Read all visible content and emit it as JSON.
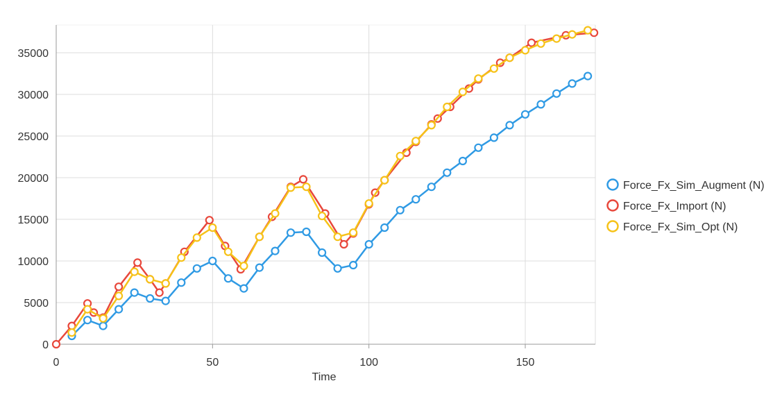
{
  "chart_data": {
    "type": "line",
    "title": "",
    "xlabel": "Time",
    "ylabel": "",
    "xlim": [
      0,
      172
    ],
    "ylim": [
      0,
      38000
    ],
    "xticks": [
      0,
      50,
      100,
      150
    ],
    "yticks": [
      0,
      5000,
      10000,
      15000,
      20000,
      25000,
      30000,
      35000
    ],
    "grid": true,
    "legend_position": "right",
    "series": [
      {
        "name": "Force_Fx_Sim_Augment (N)",
        "color": "#2f9ae4",
        "points": [
          [
            5,
            1000
          ],
          [
            10,
            2900
          ],
          [
            15,
            2200
          ],
          [
            20,
            4200
          ],
          [
            25,
            6200
          ],
          [
            30,
            5500
          ],
          [
            35,
            5200
          ],
          [
            40,
            7400
          ],
          [
            45,
            9100
          ],
          [
            50,
            10000
          ],
          [
            55,
            7900
          ],
          [
            60,
            6700
          ],
          [
            65,
            9200
          ],
          [
            70,
            11200
          ],
          [
            75,
            13400
          ],
          [
            80,
            13500
          ],
          [
            85,
            11000
          ],
          [
            90,
            9100
          ],
          [
            95,
            9500
          ],
          [
            100,
            12000
          ],
          [
            105,
            14000
          ],
          [
            110,
            16100
          ],
          [
            115,
            17400
          ],
          [
            120,
            18900
          ],
          [
            125,
            20600
          ],
          [
            130,
            22000
          ],
          [
            135,
            23600
          ],
          [
            140,
            24800
          ],
          [
            145,
            26300
          ],
          [
            150,
            27600
          ],
          [
            155,
            28800
          ],
          [
            160,
            30100
          ],
          [
            165,
            31300
          ],
          [
            170,
            32200
          ]
        ]
      },
      {
        "name": "Force_Fx_Import (N)",
        "color": "#e8473b",
        "points": [
          [
            0,
            0
          ],
          [
            5,
            2200
          ],
          [
            10,
            4900
          ],
          [
            12,
            3800
          ],
          [
            15,
            3200
          ],
          [
            20,
            6900
          ],
          [
            26,
            9800
          ],
          [
            30,
            7800
          ],
          [
            33,
            6200
          ],
          [
            35,
            7300
          ],
          [
            41,
            11100
          ],
          [
            49,
            14900
          ],
          [
            54,
            11800
          ],
          [
            59,
            9000
          ],
          [
            65,
            12900
          ],
          [
            69,
            15300
          ],
          [
            75,
            18900
          ],
          [
            79,
            19800
          ],
          [
            86,
            15700
          ],
          [
            92,
            12000
          ],
          [
            95,
            13300
          ],
          [
            100,
            16800
          ],
          [
            102,
            18200
          ],
          [
            105,
            19700
          ],
          [
            112,
            23000
          ],
          [
            115,
            24300
          ],
          [
            120,
            26400
          ],
          [
            122,
            27100
          ],
          [
            126,
            28500
          ],
          [
            132,
            30700
          ],
          [
            135,
            31800
          ],
          [
            142,
            33800
          ],
          [
            145,
            34400
          ],
          [
            152,
            36200
          ],
          [
            163,
            37100
          ],
          [
            172,
            37400
          ]
        ]
      },
      {
        "name": "Force_Fx_Sim_Opt (N)",
        "color": "#f6c218",
        "points": [
          [
            5,
            1400
          ],
          [
            10,
            4200
          ],
          [
            15,
            3100
          ],
          [
            20,
            5800
          ],
          [
            25,
            8700
          ],
          [
            30,
            7800
          ],
          [
            35,
            7300
          ],
          [
            40,
            10400
          ],
          [
            45,
            12800
          ],
          [
            50,
            14000
          ],
          [
            55,
            11100
          ],
          [
            60,
            9400
          ],
          [
            65,
            12900
          ],
          [
            70,
            15700
          ],
          [
            75,
            18800
          ],
          [
            80,
            18900
          ],
          [
            85,
            15400
          ],
          [
            90,
            12900
          ],
          [
            95,
            13400
          ],
          [
            100,
            16900
          ],
          [
            105,
            19700
          ],
          [
            110,
            22600
          ],
          [
            115,
            24400
          ],
          [
            120,
            26300
          ],
          [
            125,
            28500
          ],
          [
            130,
            30300
          ],
          [
            135,
            31900
          ],
          [
            140,
            33100
          ],
          [
            145,
            34400
          ],
          [
            150,
            35300
          ],
          [
            155,
            36100
          ],
          [
            160,
            36700
          ],
          [
            165,
            37200
          ],
          [
            170,
            37700
          ]
        ]
      }
    ]
  }
}
